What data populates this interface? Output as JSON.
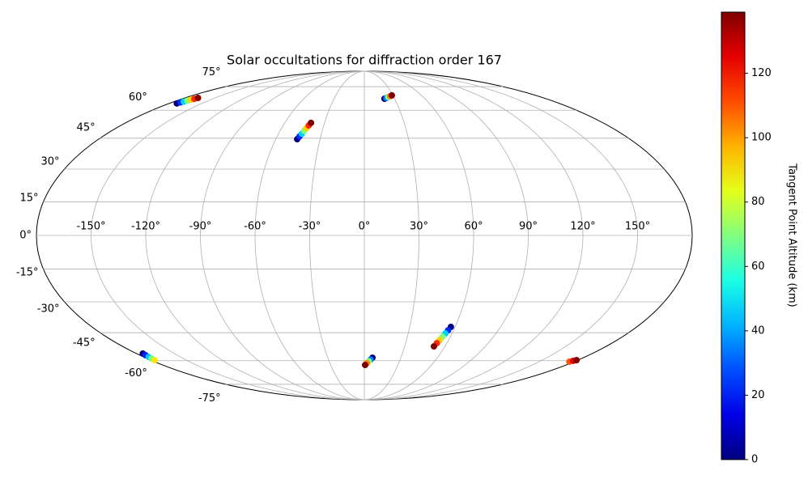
{
  "chart_data": {
    "type": "scatter",
    "projection": "mollweide",
    "grid": true,
    "title": "Solar occultations for diffraction order 167",
    "xlim": [
      -180,
      180
    ],
    "ylim": [
      -90,
      90
    ],
    "xticks": [
      {
        "value": -150,
        "label": "-150°"
      },
      {
        "value": -120,
        "label": "-120°"
      },
      {
        "value": -90,
        "label": "-90°"
      },
      {
        "value": -60,
        "label": "-60°"
      },
      {
        "value": -30,
        "label": "-30°"
      },
      {
        "value": 0,
        "label": "0°"
      },
      {
        "value": 30,
        "label": "30°"
      },
      {
        "value": 60,
        "label": "60°"
      },
      {
        "value": 90,
        "label": "90°"
      },
      {
        "value": 120,
        "label": "120°"
      },
      {
        "value": 150,
        "label": "150°"
      }
    ],
    "yticks": [
      {
        "value": -75,
        "label": "-75°"
      },
      {
        "value": -60,
        "label": "-60°"
      },
      {
        "value": -45,
        "label": "-45°"
      },
      {
        "value": -30,
        "label": "-30°"
      },
      {
        "value": -15,
        "label": "-15°"
      },
      {
        "value": 0,
        "label": "0°"
      },
      {
        "value": 15,
        "label": "15°"
      },
      {
        "value": 30,
        "label": "30°"
      },
      {
        "value": 45,
        "label": "45°"
      },
      {
        "value": 60,
        "label": "60°"
      },
      {
        "value": 75,
        "label": "75°"
      }
    ],
    "colorbar": {
      "label": "Tangent Point Altitude (km)",
      "colormap": "jet",
      "lim": [
        0,
        139
      ],
      "ticks": [
        0,
        20,
        40,
        60,
        80,
        100,
        120
      ]
    },
    "series": [
      {
        "lon": [
          -173,
          -172,
          -171,
          -170,
          -169,
          -168,
          -167
        ],
        "lat": [
          64,
          64.6,
          65.1,
          65.7,
          66.3,
          66.8,
          67.4
        ],
        "alt": [
          0,
          23,
          46,
          70,
          93,
          116,
          139
        ]
      },
      {
        "lon": [
          -45.5,
          -44.6,
          -43.7,
          -42.8,
          -42,
          -41.1,
          -40.2
        ],
        "lat": [
          44.5,
          45.9,
          47.3,
          48.8,
          50.2,
          51.6,
          53
        ],
        "alt": [
          0,
          23,
          46,
          70,
          93,
          116,
          139
        ]
      },
      {
        "lon": [
          20,
          22.2,
          24.5,
          26.7,
          28.9
        ],
        "lat": [
          66.9,
          67.4,
          68,
          68.5,
          69
        ],
        "alt": [
          0,
          35,
          70,
          104,
          139
        ]
      },
      {
        "lon": [
          -175,
          -175.5,
          -176,
          -176.5,
          -177
        ],
        "lat": [
          -56,
          -56.9,
          -57.9,
          -58.8,
          -59.7
        ],
        "alt": [
          0,
          22,
          45,
          67,
          90
        ]
      },
      {
        "lon": [
          6.7,
          5.2,
          3.7,
          2.2,
          0.7
        ],
        "lat": [
          -58.3,
          -59.4,
          -60.4,
          -61.5,
          -62.5
        ],
        "alt": [
          0,
          35,
          70,
          104,
          139
        ]
      },
      {
        "lon": [
          57.2,
          56.3,
          55.4,
          54.5,
          53.6,
          52.7,
          51.8
        ],
        "lat": [
          -42.1,
          -43.8,
          -45.4,
          -47.1,
          -48.8,
          -50.4,
          -52.1
        ],
        "alt": [
          0,
          23,
          46,
          70,
          93,
          116,
          139
        ]
      },
      {
        "lon": [
          176,
          177.5,
          179
        ],
        "lat": [
          -60.6,
          -60.1,
          -59.7
        ],
        "alt": [
          110,
          125,
          139
        ]
      }
    ]
  }
}
